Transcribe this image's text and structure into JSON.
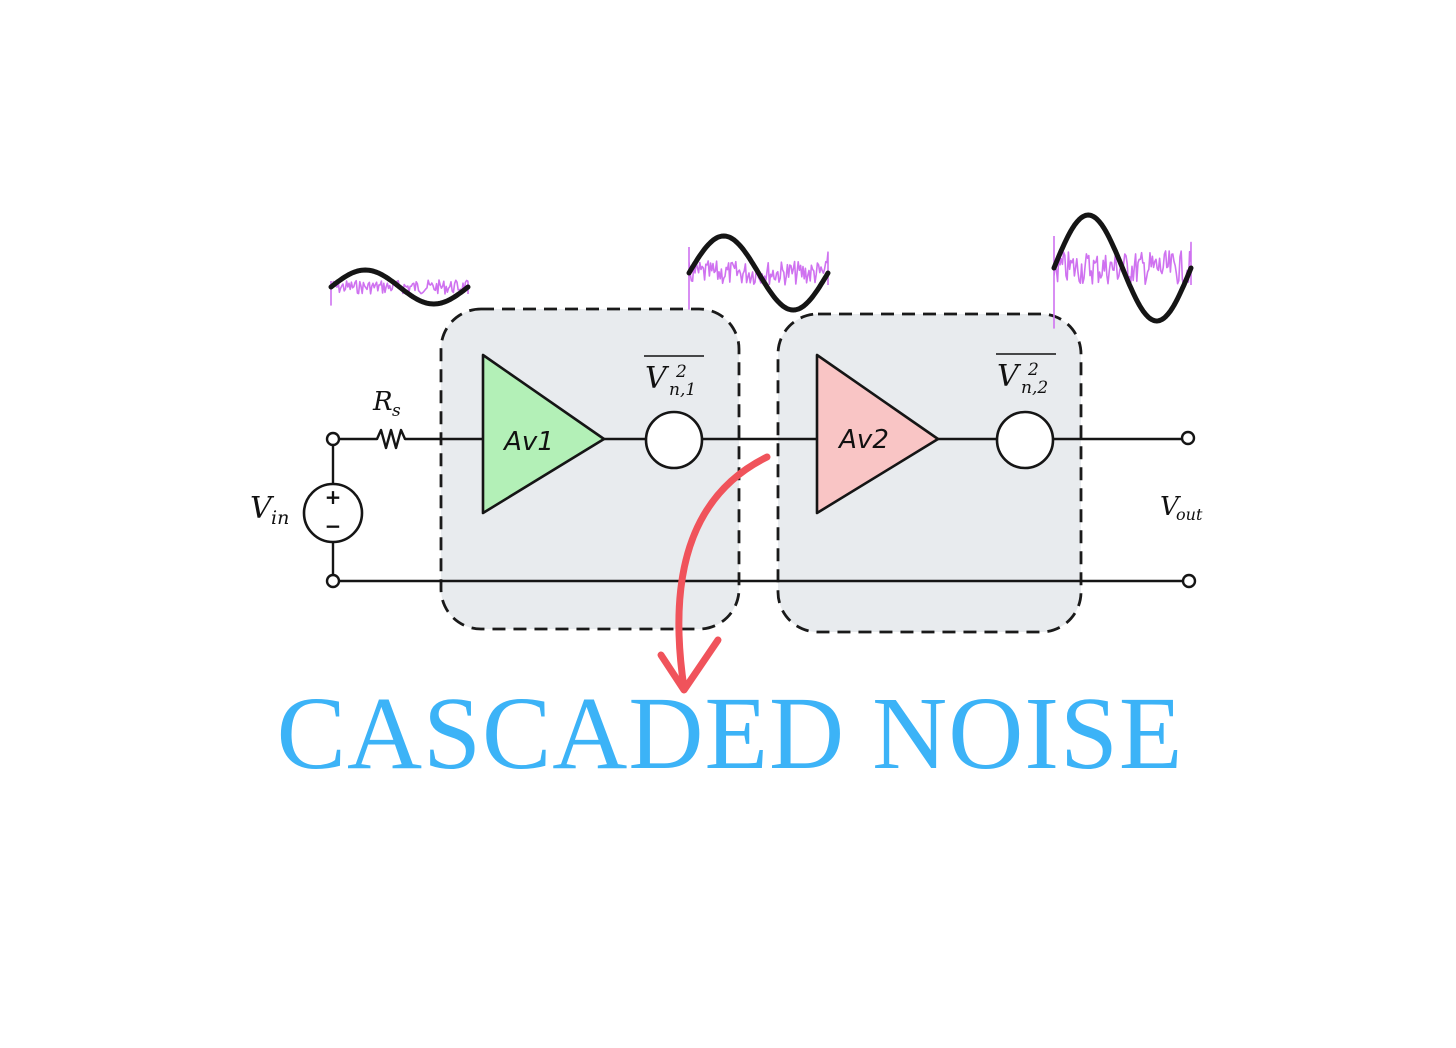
{
  "colors": {
    "wire": "#151515",
    "box_fill": "#e8ebee",
    "box_stroke": "#1a1a1a",
    "amp1_fill": "#b3f0b7",
    "amp2_fill": "#f9c5c5",
    "noise": "#cf72f0",
    "arrow": "#f0535b",
    "title": "#3cb3f7"
  },
  "labels": {
    "source": {
      "base": "V",
      "sub": "in"
    },
    "resistor": {
      "base": "R",
      "sub": "s"
    },
    "output": {
      "base": "V",
      "sub": "out"
    },
    "noise1": {
      "base": "V",
      "sup": "2",
      "sub": "n,1"
    },
    "noise2": {
      "base": "V",
      "sup": "2",
      "sub": "n,2"
    },
    "plus": "+",
    "minus": "−"
  },
  "stages": [
    {
      "label": "Av1",
      "color": "green"
    },
    {
      "label": "Av2",
      "color": "red"
    }
  ],
  "signals": [
    {
      "stage": "input",
      "amplitude": "small",
      "noise": "low"
    },
    {
      "stage": "after Av1",
      "amplitude": "medium",
      "noise": "medium"
    },
    {
      "stage": "after Av2",
      "amplitude": "large",
      "noise": "high"
    }
  ],
  "title": "CASCADED NOISE"
}
